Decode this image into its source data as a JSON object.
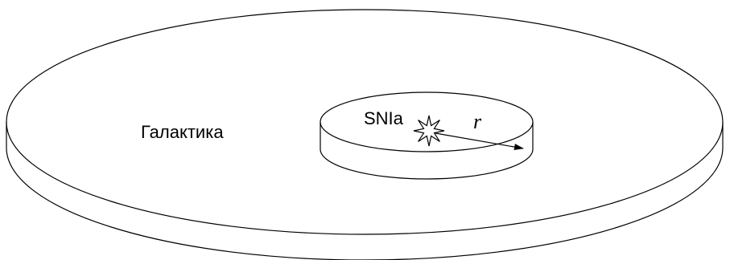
{
  "labels": {
    "galaxy": "Галактика",
    "supernova": "SNIa",
    "radius": "r"
  }
}
